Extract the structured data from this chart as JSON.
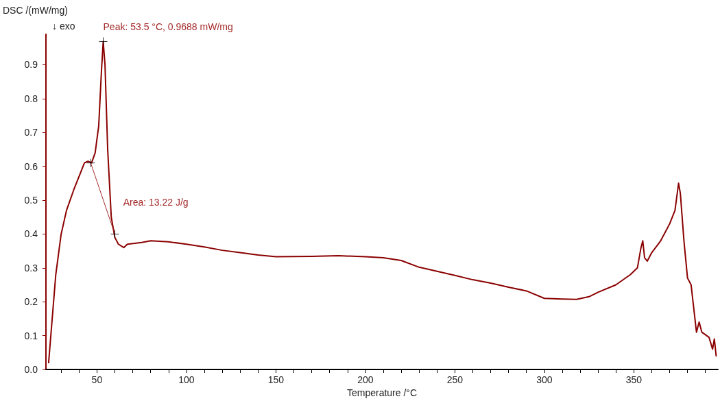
{
  "chart_data": {
    "type": "line",
    "xlabel": "Temperature /°C",
    "ylabel": "DSC /(mW/mg)",
    "xlim": [
      21.5,
      397
    ],
    "ylim": [
      0,
      0.99
    ],
    "xticks": [
      {
        "value": 30,
        "label": null
      },
      {
        "value": 40,
        "label": null
      },
      50,
      {
        "value": 60,
        "label": null
      },
      {
        "value": 70,
        "label": null
      },
      {
        "value": 80,
        "label": null
      },
      {
        "value": 90,
        "label": null
      },
      100,
      {
        "value": 110,
        "label": null
      },
      {
        "value": 120,
        "label": null
      },
      {
        "value": 130,
        "label": null
      },
      {
        "value": 140,
        "label": null
      },
      150,
      {
        "value": 160,
        "label": null
      },
      {
        "value": 170,
        "label": null
      },
      {
        "value": 180,
        "label": null
      },
      {
        "value": 190,
        "label": null
      },
      200,
      {
        "value": 210,
        "label": null
      },
      {
        "value": 220,
        "label": null
      },
      {
        "value": 230,
        "label": null
      },
      {
        "value": 240,
        "label": null
      },
      250,
      {
        "value": 260,
        "label": null
      },
      {
        "value": 270,
        "label": null
      },
      {
        "value": 280,
        "label": null
      },
      {
        "value": 290,
        "label": null
      },
      300,
      {
        "value": 310,
        "label": null
      },
      {
        "value": 320,
        "label": null
      },
      {
        "value": 330,
        "label": null
      },
      {
        "value": 340,
        "label": null
      },
      350,
      {
        "value": 360,
        "label": null
      },
      {
        "value": 370,
        "label": null
      },
      {
        "value": 380,
        "label": null
      },
      {
        "value": 390,
        "label": null
      }
    ],
    "yticks": [
      {
        "value": 0,
        "label": "0.0"
      },
      0.1,
      0.2,
      0.3,
      0.4,
      0.5,
      0.6,
      0.7,
      0.8,
      0.9
    ],
    "grid": false,
    "line_style": "solid",
    "annotations": [
      "↓ exo",
      {
        "text": "Peak: 53.5 °C, 0.9688 mW/mg",
        "x": 53.5,
        "y": 0.9688
      },
      {
        "text": "Area: 13.22 J/g",
        "x": 57,
        "y": 0.5
      }
    ],
    "series": [
      {
        "color": "#8b0000",
        "marker": "none",
        "x": [
          23,
          25,
          27,
          30,
          33,
          37,
          40,
          43,
          45,
          47,
          49,
          51,
          52.5,
          53.5,
          54.5,
          56,
          58,
          60,
          62,
          65,
          67,
          75,
          80,
          90,
          100,
          110,
          120,
          130,
          140,
          150,
          170,
          185,
          200,
          210,
          220,
          230,
          240,
          250,
          260,
          270,
          280,
          290,
          300,
          310,
          318,
          325,
          330,
          340,
          348,
          352,
          354,
          355,
          356,
          357.5,
          360,
          365,
          370,
          373,
          375,
          376,
          378,
          380,
          382,
          385,
          386.5,
          388,
          392,
          394,
          395,
          396
        ],
        "values": [
          0.02,
          0.15,
          0.28,
          0.4,
          0.47,
          0.53,
          0.57,
          0.61,
          0.615,
          0.61,
          0.64,
          0.72,
          0.88,
          0.9688,
          0.9,
          0.65,
          0.45,
          0.39,
          0.37,
          0.36,
          0.37,
          0.375,
          0.38,
          0.377,
          0.37,
          0.362,
          0.352,
          0.345,
          0.338,
          0.333,
          0.334,
          0.336,
          0.333,
          0.33,
          0.322,
          0.302,
          0.29,
          0.278,
          0.265,
          0.255,
          0.243,
          0.232,
          0.21,
          0.208,
          0.207,
          0.215,
          0.228,
          0.25,
          0.28,
          0.3,
          0.36,
          0.38,
          0.33,
          0.32,
          0.345,
          0.38,
          0.43,
          0.47,
          0.55,
          0.52,
          0.38,
          0.27,
          0.25,
          0.11,
          0.14,
          0.11,
          0.095,
          0.06,
          0.09,
          0.04
        ]
      },
      {
        "type": "line",
        "color": "#a52a2a",
        "marker": "none",
        "x": [
          46.5,
          60
        ],
        "values": [
          0.61,
          0.4
        ]
      },
      {
        "type": "scatter",
        "color": "#000000",
        "marker": "cross",
        "x": [
          46.5,
          53.5,
          60
        ],
        "values": [
          0.61,
          0.9688,
          0.4
        ]
      }
    ]
  }
}
